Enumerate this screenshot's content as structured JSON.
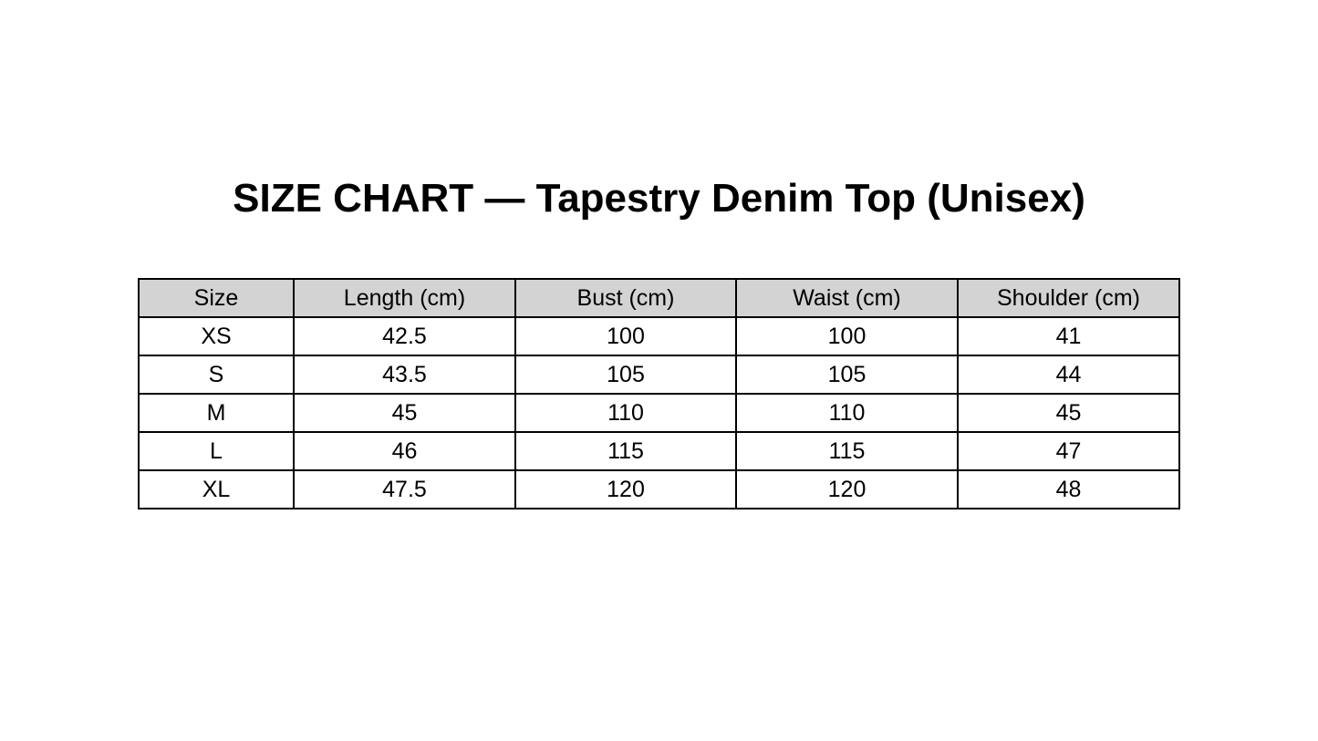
{
  "title": "SIZE CHART — Tapestry Denim Top (Unisex)",
  "table": {
    "header_bg": "#d3d3d3",
    "columns": [
      "Size",
      "Length (cm)",
      "Bust (cm)",
      "Waist (cm)",
      "Shoulder (cm)"
    ],
    "rows": [
      [
        "XS",
        "42.5",
        "100",
        "100",
        "41"
      ],
      [
        "S",
        "43.5",
        "105",
        "105",
        "44"
      ],
      [
        "M",
        "45",
        "110",
        "110",
        "45"
      ],
      [
        "L",
        "46",
        "115",
        "115",
        "47"
      ],
      [
        "XL",
        "47.5",
        "120",
        "120",
        "48"
      ]
    ]
  }
}
